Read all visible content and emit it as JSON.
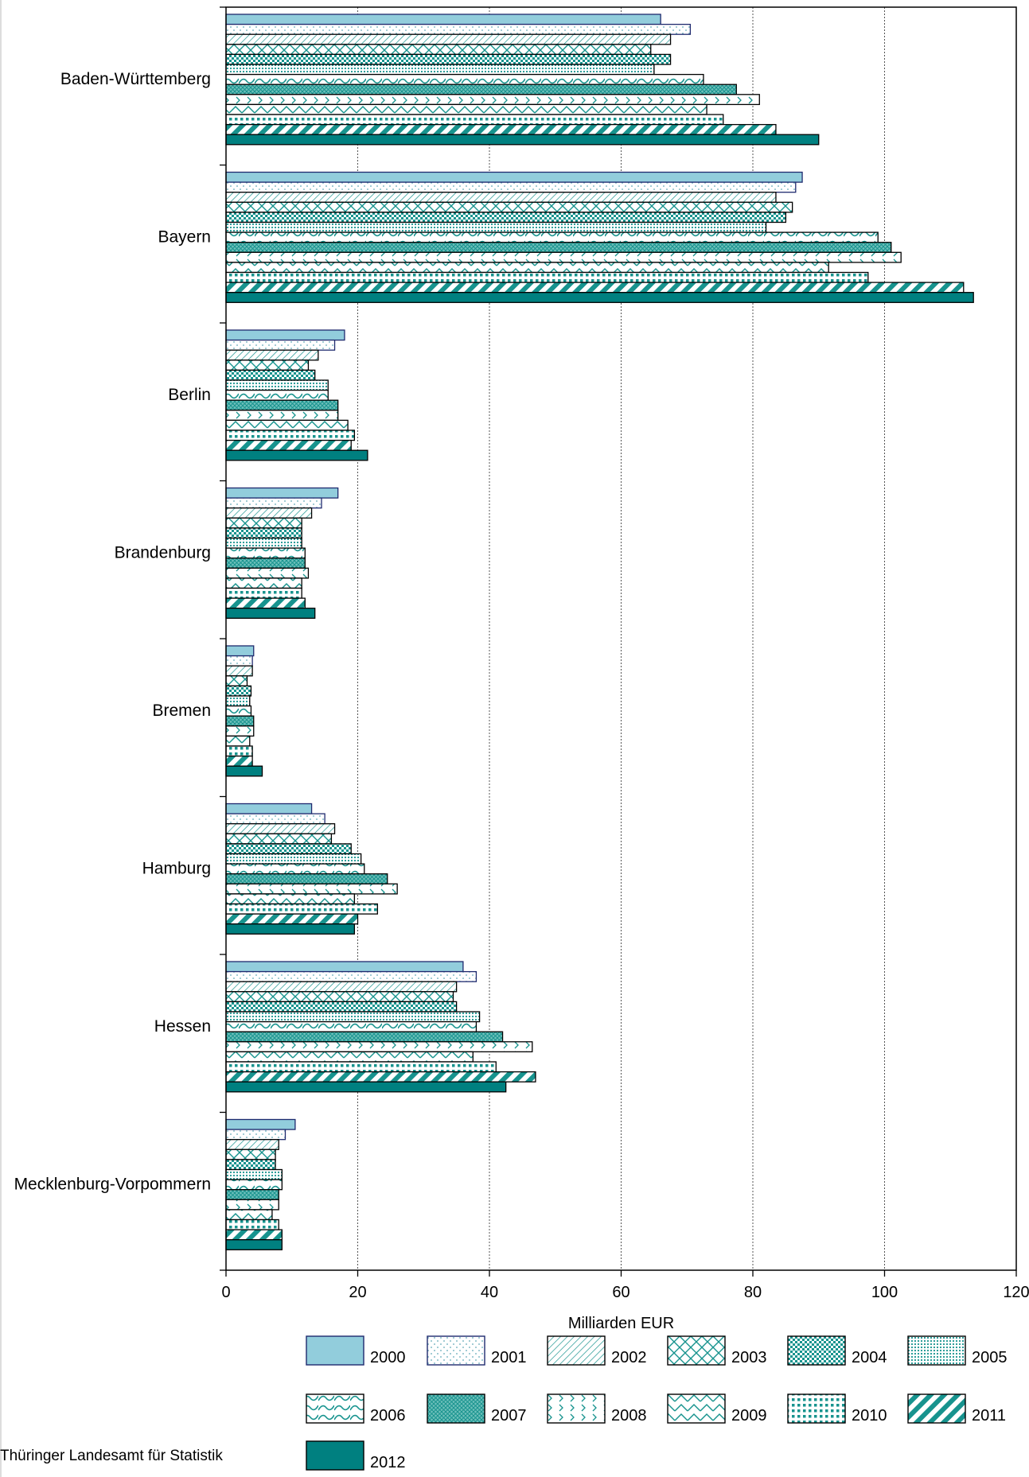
{
  "chart_data": {
    "type": "bar",
    "orientation": "horizontal",
    "xlabel": "Milliarden EUR",
    "xlim": [
      0,
      120
    ],
    "xticks": [
      0,
      20,
      40,
      60,
      80,
      100,
      120
    ],
    "grid": "vertical dotted",
    "legend_position": "bottom",
    "categories": [
      "Baden-Württemberg",
      "Bayern",
      "Berlin",
      "Brandenburg",
      "Bremen",
      "Hamburg",
      "Hessen",
      "Mecklenburg-Vorpommern"
    ],
    "series": [
      {
        "name": "2000",
        "pattern": "solid-light",
        "values": [
          66,
          87.5,
          18,
          17,
          4.2,
          13,
          36,
          10.5
        ]
      },
      {
        "name": "2001",
        "pattern": "dots-light",
        "values": [
          70.5,
          86.5,
          16.5,
          14.5,
          4.0,
          15,
          38,
          9
        ]
      },
      {
        "name": "2002",
        "pattern": "diag-thin",
        "values": [
          67.5,
          83.5,
          14,
          13,
          4.0,
          16.5,
          35,
          8
        ]
      },
      {
        "name": "2003",
        "pattern": "crosshatch",
        "values": [
          64.5,
          86,
          12.5,
          11.5,
          3.2,
          16,
          34.5,
          7.5
        ]
      },
      {
        "name": "2004",
        "pattern": "checker",
        "values": [
          67.5,
          85,
          13.5,
          11.5,
          3.8,
          19,
          35,
          7.5
        ]
      },
      {
        "name": "2005",
        "pattern": "dots-dense",
        "values": [
          65,
          82,
          15.5,
          11.5,
          3.6,
          20.5,
          38.5,
          8.5
        ]
      },
      {
        "name": "2006",
        "pattern": "waves",
        "values": [
          72.5,
          99,
          15.5,
          12,
          3.8,
          21,
          38,
          8.5
        ]
      },
      {
        "name": "2007",
        "pattern": "grid-fine",
        "values": [
          77.5,
          101,
          17,
          12,
          4.2,
          24.5,
          42,
          8
        ]
      },
      {
        "name": "2008",
        "pattern": "chevrons",
        "values": [
          81,
          102.5,
          17,
          12.5,
          4.2,
          26,
          46.5,
          8
        ]
      },
      {
        "name": "2009",
        "pattern": "zigzag",
        "values": [
          73,
          91.5,
          18.5,
          11.5,
          3.6,
          19.5,
          37.5,
          7
        ]
      },
      {
        "name": "2010",
        "pattern": "squares",
        "values": [
          75.5,
          97.5,
          19.5,
          11.5,
          4.0,
          23,
          41,
          8
        ]
      },
      {
        "name": "2011",
        "pattern": "diag-thick",
        "values": [
          83.5,
          112,
          19,
          12,
          4.0,
          20,
          47,
          8.5
        ]
      },
      {
        "name": "2012",
        "pattern": "solid-dark",
        "values": [
          90,
          113.5,
          21.5,
          13.5,
          5.5,
          19.5,
          42.5,
          8.5
        ]
      }
    ]
  },
  "colors": {
    "light_fill": "#92cddc",
    "teal": "#17938e",
    "dark_teal": "#008080",
    "navy_outline": "#1f2a6e",
    "gridline": "#555555"
  },
  "source": "Thüringer Landesamt für Statistik"
}
